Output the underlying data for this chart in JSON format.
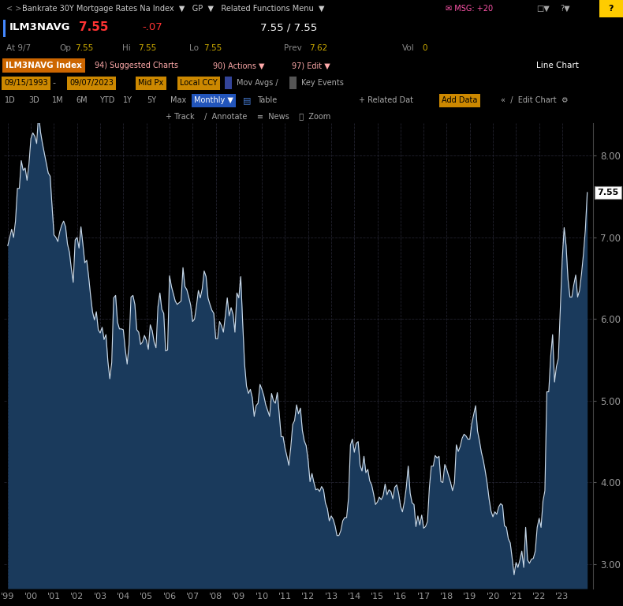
{
  "bg_color": "#000000",
  "chart_bg": "#000000",
  "fill_color": "#1a3a5c",
  "line_color": "#c8d8e8",
  "grid_color": "#2a2a3a",
  "axis_label_color": "#999999",
  "ylim_min": 2.7,
  "ylim_max": 8.4,
  "yticks": [
    3.0,
    4.0,
    5.0,
    6.0,
    7.0,
    8.0
  ],
  "xtick_labels": [
    "'99",
    "'00",
    "'01",
    "'02",
    "'03",
    "'04",
    "'05",
    "'06",
    "'07",
    "'08",
    "'09",
    "'10",
    "'11",
    "'12",
    "'13",
    "'14",
    "'15",
    "'16",
    "'17",
    "'18",
    "'19",
    "'20",
    "'21",
    "'22",
    "'23"
  ],
  "nav_bar_color": "#111111",
  "nav_bar_text": "Bankrate 30Y Mortgage Rates Na Index",
  "ticker_row_color": "#000000",
  "ticker": "ILM3NAVG",
  "price": "7.55",
  "change": "-.07",
  "hi_lo": "7.55 / 7.55",
  "at_date": "9/7",
  "op_val": "7.55",
  "hi_val": "7.55",
  "lo_val": "7.55",
  "prev_val": "7.62",
  "vol_val": "0",
  "red_toolbar_color": "#8b0000",
  "orange_bg": "#cc6600",
  "dark_row_color": "#111111",
  "blue_btn_color": "#2255bb",
  "orange_box_color": "#cc8800",
  "current_label": "7.55",
  "current_label_bg": "#ffffff",
  "current_label_color": "#000000",
  "values": [
    6.9,
    7.0,
    7.1,
    7.0,
    7.2,
    7.6,
    7.6,
    7.94,
    7.82,
    7.85,
    7.7,
    7.9,
    8.21,
    8.28,
    8.24,
    8.15,
    8.52,
    8.29,
    8.15,
    8.03,
    7.91,
    7.79,
    7.75,
    7.38,
    7.03,
    7.0,
    6.95,
    7.07,
    7.15,
    7.2,
    7.13,
    6.92,
    6.82,
    6.62,
    6.45,
    6.97,
    7.0,
    6.87,
    7.13,
    6.92,
    6.69,
    6.72,
    6.52,
    6.29,
    6.09,
    5.99,
    6.09,
    5.87,
    5.83,
    5.9,
    5.75,
    5.81,
    5.48,
    5.27,
    5.47,
    6.26,
    6.29,
    5.96,
    5.88,
    5.88,
    5.87,
    5.63,
    5.45,
    5.69,
    6.27,
    6.29,
    6.18,
    5.87,
    5.84,
    5.69,
    5.72,
    5.8,
    5.74,
    5.63,
    5.93,
    5.86,
    5.72,
    5.65,
    6.15,
    6.32,
    6.12,
    6.07,
    5.61,
    5.62,
    6.53,
    6.4,
    6.31,
    6.22,
    6.18,
    6.2,
    6.22,
    6.63,
    6.4,
    6.36,
    6.27,
    6.17,
    5.97,
    6.0,
    6.16,
    6.35,
    6.26,
    6.37,
    6.59,
    6.52,
    6.26,
    6.18,
    6.11,
    6.07,
    5.76,
    5.76,
    5.97,
    5.92,
    5.84,
    6.04,
    6.26,
    6.04,
    6.14,
    6.06,
    5.84,
    6.32,
    6.26,
    6.52,
    5.96,
    5.45,
    5.18,
    5.09,
    5.14,
    5.04,
    4.81,
    4.94,
    4.97,
    5.2,
    5.14,
    5.06,
    4.95,
    4.88,
    4.81,
    5.09,
    5.0,
    4.97,
    5.1,
    4.84,
    4.56,
    4.56,
    4.42,
    4.32,
    4.21,
    4.43,
    4.71,
    4.76,
    4.95,
    4.84,
    4.91,
    4.64,
    4.51,
    4.45,
    4.27,
    4.01,
    4.11,
    4.0,
    3.91,
    3.92,
    3.89,
    3.95,
    3.91,
    3.75,
    3.68,
    3.53,
    3.59,
    3.55,
    3.47,
    3.35,
    3.35,
    3.41,
    3.53,
    3.57,
    3.57,
    3.81,
    4.46,
    4.53,
    4.37,
    4.48,
    4.5,
    4.21,
    4.14,
    4.32,
    4.12,
    4.16,
    4.02,
    3.97,
    3.86,
    3.73,
    3.76,
    3.82,
    3.79,
    3.84,
    3.98,
    3.85,
    3.91,
    3.89,
    3.8,
    3.94,
    3.97,
    3.87,
    3.71,
    3.64,
    3.76,
    3.94,
    4.2,
    3.87,
    3.75,
    3.73,
    3.46,
    3.59,
    3.48,
    3.6,
    3.44,
    3.46,
    3.52,
    3.94,
    4.2,
    4.2,
    4.33,
    4.3,
    4.32,
    4.01,
    4.0,
    4.22,
    4.16,
    4.08,
    4.0,
    3.9,
    3.99,
    4.46,
    4.38,
    4.44,
    4.54,
    4.59,
    4.57,
    4.53,
    4.53,
    4.72,
    4.83,
    4.94,
    4.63,
    4.51,
    4.37,
    4.27,
    4.14,
    3.99,
    3.8,
    3.65,
    3.58,
    3.64,
    3.61,
    3.7,
    3.74,
    3.72,
    3.47,
    3.45,
    3.31,
    3.26,
    3.07,
    2.87,
    3.02,
    2.96,
    3.05,
    3.16,
    2.96,
    3.45,
    3.05,
    3.01,
    3.06,
    3.07,
    3.16,
    3.45,
    3.56,
    3.45,
    3.77,
    3.9,
    5.11,
    5.11,
    5.54,
    5.81,
    5.23,
    5.42,
    5.52,
    6.13,
    6.73,
    7.12,
    6.9,
    6.49,
    6.27,
    6.27,
    6.42,
    6.54,
    6.27,
    6.35,
    6.55,
    6.79,
    7.09,
    7.55
  ]
}
